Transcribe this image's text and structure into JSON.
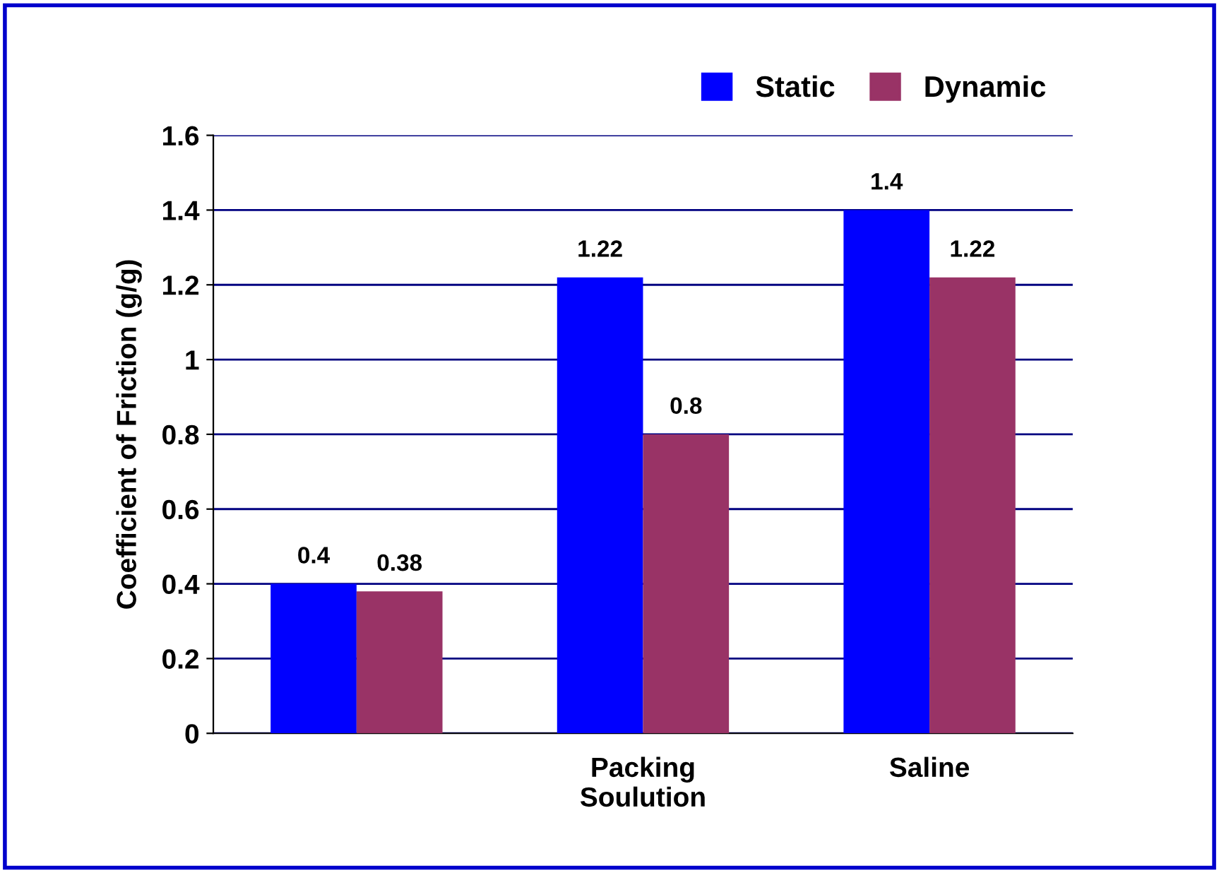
{
  "chart_data": {
    "type": "bar",
    "ylabel": "Coefficient of Friction (g/g)",
    "categories": [
      null,
      "Packing\nSoulution",
      "Saline"
    ],
    "series": [
      {
        "name": "Static",
        "color": "#0000ff",
        "values": [
          0.4,
          1.22,
          1.4
        ]
      },
      {
        "name": "Dynamic",
        "color": "#993366",
        "values": [
          0.38,
          0.8,
          1.22
        ]
      }
    ],
    "ylim": [
      0,
      1.6
    ],
    "yticks": [
      0,
      0.2,
      0.4,
      0.6,
      0.8,
      1,
      1.2,
      1.4,
      1.6
    ],
    "grid": "y",
    "legend": "top right",
    "data_labels": true
  }
}
